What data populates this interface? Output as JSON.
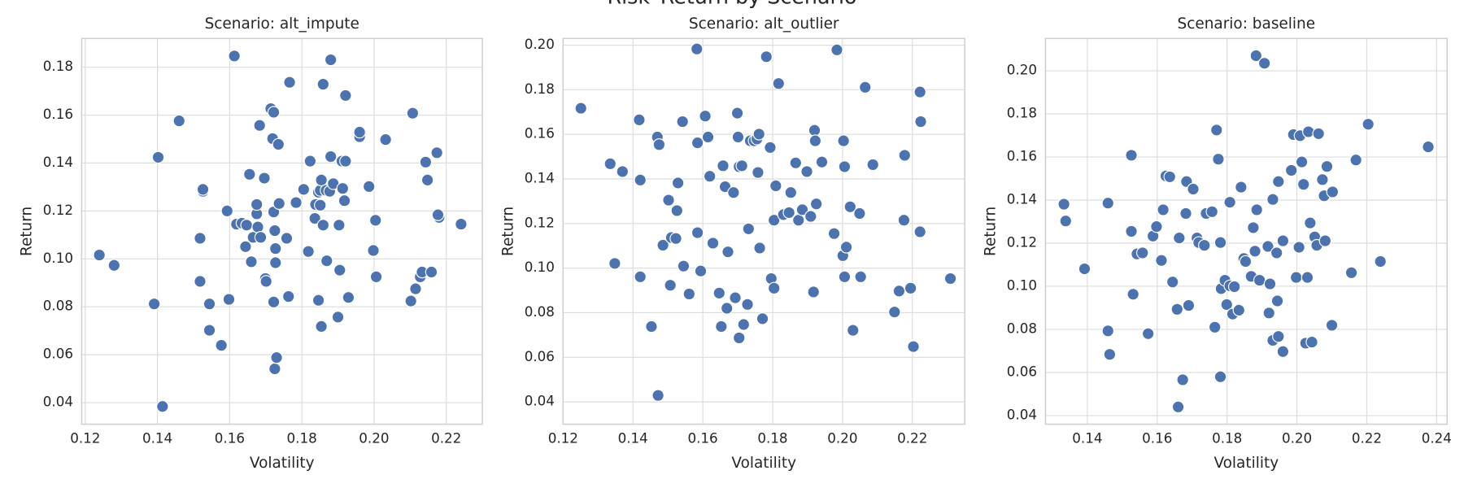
{
  "title": "Risk–Return by Scenario",
  "chart_data": [
    {
      "type": "scatter",
      "title": "Scenario: alt_impute",
      "x_label": "Volatility",
      "y_label": "Return",
      "color": "#4c72b0",
      "grid": true,
      "xlim": [
        0.119,
        0.23
      ],
      "ylim": [
        0.031,
        0.192
      ],
      "xticks": [
        0.12,
        0.14,
        0.16,
        0.18,
        {
          "value": 0.2,
          "label": "0.20"
        },
        0.22
      ],
      "yticks": [
        0.04,
        0.06,
        0.08,
        {
          "value": 0.1,
          "label": "0.10"
        },
        0.12,
        0.14,
        0.16,
        0.18
      ],
      "x": [
        0.1239,
        0.128,
        0.1391,
        0.1402,
        0.1414,
        0.146,
        0.1518,
        0.1526,
        0.1526,
        0.1518,
        0.1544,
        0.1544,
        0.1577,
        0.1598,
        0.1593,
        0.1613,
        0.1619,
        0.1634,
        0.1647,
        0.1644,
        0.1655,
        0.166,
        0.1665,
        0.1675,
        0.1678,
        0.1675,
        0.1683,
        0.1686,
        0.1696,
        0.1699,
        0.1701,
        0.1714,
        0.1719,
        0.1722,
        0.1722,
        0.1727,
        0.1727,
        0.1722,
        0.1725,
        0.1725,
        0.173,
        0.1737,
        0.1735,
        0.1758,
        0.1763,
        0.1766,
        0.1784,
        0.1805,
        0.1818,
        0.1823,
        0.1836,
        0.1838,
        0.1846,
        0.1846,
        0.1851,
        0.1851,
        0.1854,
        0.1854,
        0.1859,
        0.1859,
        0.1867,
        0.1869,
        0.188,
        0.1877,
        0.1887,
        0.188,
        0.19,
        0.1903,
        0.1905,
        0.1911,
        0.1913,
        0.1921,
        0.1918,
        0.1921,
        0.1929,
        0.196,
        0.196,
        0.1986,
        0.1998,
        0.2004,
        0.2006,
        0.2032,
        0.2102,
        0.2107,
        0.2115,
        0.2128,
        0.2133,
        0.2143,
        0.2148,
        0.2159,
        0.2174,
        0.218,
        0.2177,
        0.2241
      ],
      "values": [
        0.1016,
        0.0973,
        0.0812,
        0.1424,
        0.0384,
        0.1576,
        0.1086,
        0.1282,
        0.129,
        0.0906,
        0.0812,
        0.0702,
        0.0639,
        0.0831,
        0.12,
        0.1847,
        0.1145,
        0.1149,
        0.1141,
        0.1051,
        0.1353,
        0.0988,
        0.109,
        0.1188,
        0.1133,
        0.1227,
        0.1557,
        0.109,
        0.1337,
        0.0918,
        0.0906,
        0.1627,
        0.1502,
        0.1612,
        0.1196,
        0.1043,
        0.0984,
        0.082,
        0.1118,
        0.0541,
        0.0588,
        0.1231,
        0.1478,
        0.1086,
        0.0843,
        0.1737,
        0.1235,
        0.129,
        0.1031,
        0.1408,
        0.1169,
        0.1227,
        0.1278,
        0.0827,
        0.1224,
        0.1286,
        0.1329,
        0.0718,
        0.1729,
        0.1141,
        0.1286,
        0.0992,
        0.1427,
        0.1282,
        0.1314,
        0.1831,
        0.0757,
        0.1141,
        0.0953,
        0.1408,
        0.1294,
        0.1682,
        0.1243,
        0.1408,
        0.0839,
        0.151,
        0.1529,
        0.1302,
        0.1035,
        0.1161,
        0.0925,
        0.1498,
        0.0824,
        0.1608,
        0.0875,
        0.0925,
        0.0945,
        0.1404,
        0.1329,
        0.0945,
        0.1443,
        0.1173,
        0.1184,
        0.1145
      ]
    },
    {
      "type": "scatter",
      "title": "Scenario: alt_outlier",
      "x_label": "Volatility",
      "y_label": "Return",
      "color": "#4c72b0",
      "grid": true,
      "xlim": [
        0.12,
        0.235
      ],
      "ylim": [
        0.03,
        0.203
      ],
      "xticks": [
        0.12,
        0.14,
        0.16,
        0.18,
        {
          "value": 0.2,
          "label": "0.20"
        },
        0.22
      ],
      "yticks": [
        0.04,
        0.06,
        0.08,
        {
          "value": 0.1,
          "label": "0.10"
        },
        0.12,
        0.14,
        0.16,
        0.18,
        {
          "value": 0.2,
          "label": "0.20"
        }
      ],
      "x": [
        0.1251,
        0.1335,
        0.137,
        0.1348,
        0.1418,
        0.1421,
        0.1421,
        0.1453,
        0.147,
        0.1475,
        0.1472,
        0.1486,
        0.1502,
        0.1507,
        0.151,
        0.1523,
        0.1526,
        0.1529,
        0.1542,
        0.1545,
        0.1561,
        0.1583,
        0.1585,
        0.1585,
        0.1594,
        0.1607,
        0.1615,
        0.162,
        0.1629,
        0.1647,
        0.1653,
        0.1658,
        0.1664,
        0.1669,
        0.1672,
        0.1688,
        0.1693,
        0.1699,
        0.1701,
        0.1704,
        0.1704,
        0.1712,
        0.1717,
        0.1728,
        0.1731,
        0.1736,
        0.1747,
        0.1755,
        0.1758,
        0.1761,
        0.1763,
        0.1771,
        0.1782,
        0.1793,
        0.1796,
        0.1804,
        0.1804,
        0.1809,
        0.1817,
        0.1831,
        0.1847,
        0.1852,
        0.1866,
        0.1874,
        0.1885,
        0.1898,
        0.1909,
        0.1917,
        0.192,
        0.1922,
        0.1925,
        0.1941,
        0.1976,
        0.1984,
        0.2001,
        0.2003,
        0.2006,
        0.2006,
        0.2011,
        0.2022,
        0.203,
        0.2049,
        0.2052,
        0.2065,
        0.2087,
        0.2149,
        0.2162,
        0.2176,
        0.2178,
        0.2195,
        0.2203,
        0.2222,
        0.2222,
        0.2224,
        0.2309
      ],
      "values": [
        0.1717,
        0.1468,
        0.1433,
        0.1021,
        0.1665,
        0.1395,
        0.0961,
        0.0738,
        0.1588,
        0.1554,
        0.0429,
        0.1103,
        0.1305,
        0.0923,
        0.1137,
        0.1133,
        0.1258,
        0.1382,
        0.1657,
        0.1009,
        0.0884,
        0.1983,
        0.1562,
        0.1159,
        0.0987,
        0.1682,
        0.1588,
        0.1412,
        0.1112,
        0.0888,
        0.0738,
        0.1459,
        0.1365,
        0.082,
        0.1073,
        0.1339,
        0.0867,
        0.1695,
        0.1588,
        0.1455,
        0.0687,
        0.1459,
        0.0747,
        0.0837,
        0.1176,
        0.1571,
        0.1571,
        0.1579,
        0.1429,
        0.1601,
        0.109,
        0.0773,
        0.1948,
        0.1541,
        0.0953,
        0.1215,
        0.091,
        0.1369,
        0.1828,
        0.124,
        0.1249,
        0.1339,
        0.1472,
        0.1215,
        0.1262,
        0.1433,
        0.1232,
        0.0893,
        0.1618,
        0.1571,
        0.1288,
        0.1476,
        0.1155,
        0.1979,
        0.1056,
        0.1571,
        0.1455,
        0.0961,
        0.1094,
        0.1275,
        0.0721,
        0.1245,
        0.0961,
        0.1811,
        0.1464,
        0.0803,
        0.0897,
        0.1215,
        0.1506,
        0.091,
        0.0648,
        0.179,
        0.1163,
        0.1657,
        0.0953
      ]
    },
    {
      "type": "scatter",
      "title": "Scenario: baseline",
      "x_label": "Volatility",
      "y_label": "Return",
      "color": "#4c72b0",
      "grid": true,
      "xlim": [
        0.128,
        0.243
      ],
      "ylim": [
        0.036,
        0.215
      ],
      "xticks": [
        0.14,
        0.16,
        0.18,
        {
          "value": 0.2,
          "label": "0.20"
        },
        0.22,
        0.24
      ],
      "yticks": [
        0.04,
        0.06,
        0.08,
        {
          "value": 0.1,
          "label": "0.10"
        },
        0.12,
        0.14,
        0.16,
        0.18,
        {
          "value": 0.2,
          "label": "0.20"
        }
      ],
      "x": [
        0.1333,
        0.1338,
        0.1392,
        0.1459,
        0.1459,
        0.1464,
        0.1526,
        0.1526,
        0.1531,
        0.1542,
        0.1558,
        0.1574,
        0.1588,
        0.1598,
        0.1612,
        0.1617,
        0.1625,
        0.1636,
        0.1644,
        0.1657,
        0.1663,
        0.166,
        0.1673,
        0.1682,
        0.1684,
        0.169,
        0.1703,
        0.1714,
        0.1719,
        0.1735,
        0.174,
        0.1757,
        0.1765,
        0.177,
        0.1775,
        0.1781,
        0.1781,
        0.1783,
        0.1794,
        0.1799,
        0.1808,
        0.1808,
        0.1816,
        0.1821,
        0.1834,
        0.184,
        0.1848,
        0.1853,
        0.1869,
        0.1875,
        0.188,
        0.1885,
        0.1893,
        0.1883,
        0.1917,
        0.192,
        0.1923,
        0.1931,
        0.1931,
        0.1942,
        0.1944,
        0.1947,
        0.1947,
        0.196,
        0.196,
        0.1907,
        0.1984,
        0.199,
        0.1998,
        0.2006,
        0.2009,
        0.2014,
        0.2019,
        0.2025,
        0.203,
        0.2033,
        0.2038,
        0.2043,
        0.2051,
        0.2057,
        0.2062,
        0.2073,
        0.2078,
        0.2081,
        0.2086,
        0.21,
        0.2102,
        0.2156,
        0.2169,
        0.2204,
        0.2239,
        0.2376
      ],
      "values": [
        0.1381,
        0.1303,
        0.1081,
        0.1386,
        0.0793,
        0.0684,
        0.1608,
        0.1255,
        0.0963,
        0.115,
        0.1155,
        0.078,
        0.1233,
        0.1277,
        0.112,
        0.1355,
        0.1512,
        0.1508,
        0.102,
        0.0893,
        0.1224,
        0.044,
        0.0566,
        0.1338,
        0.1486,
        0.0911,
        0.1451,
        0.1224,
        0.1203,
        0.119,
        0.1338,
        0.1346,
        0.081,
        0.1725,
        0.159,
        0.1203,
        0.058,
        0.0989,
        0.1028,
        0.0915,
        0.139,
        0.1002,
        0.0871,
        0.0998,
        0.0889,
        0.146,
        0.1129,
        0.1115,
        0.1046,
        0.1272,
        0.1163,
        0.1355,
        0.1028,
        0.207,
        0.1185,
        0.0876,
        0.1011,
        0.1403,
        0.0749,
        0.1155,
        0.0932,
        0.1486,
        0.0767,
        0.1211,
        0.0697,
        0.2035,
        0.1538,
        0.1704,
        0.1041,
        0.1181,
        0.1699,
        0.1577,
        0.1473,
        0.0736,
        0.1041,
        0.1717,
        0.1294,
        0.0741,
        0.1229,
        0.119,
        0.1708,
        0.1495,
        0.142,
        0.1211,
        0.1556,
        0.0819,
        0.1438,
        0.1063,
        0.1586,
        0.1752,
        0.1115,
        0.1647
      ]
    }
  ]
}
